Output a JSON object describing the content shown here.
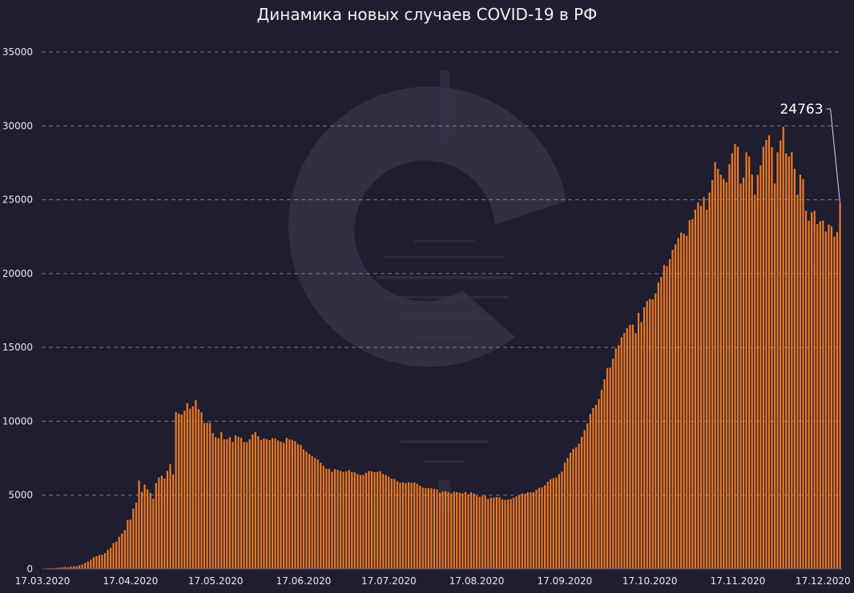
{
  "chart_data": {
    "type": "bar",
    "title": "Динамика новых случаев COVID-19 в РФ",
    "xlabel": "",
    "ylabel": "",
    "ylim": [
      0,
      35000
    ],
    "y_ticks": [
      0,
      5000,
      10000,
      15000,
      20000,
      25000,
      30000,
      35000
    ],
    "x_tick_labels": [
      "17.03.2020",
      "17.04.2020",
      "17.05.2020",
      "17.06.2020",
      "17.07.2020",
      "17.08.2020",
      "17.09.2020",
      "17.10.2020",
      "17.11.2020",
      "17.12.2020"
    ],
    "grid": true,
    "legend": "none",
    "start_date": "2020-03-17",
    "values": [
      22,
      31,
      49,
      61,
      69,
      75,
      109,
      119,
      138,
      127,
      163,
      175,
      192,
      248,
      302,
      407,
      508,
      626,
      795,
      870,
      957,
      959,
      1079,
      1305,
      1426,
      1748,
      1849,
      2181,
      2403,
      2635,
      3318,
      3346,
      4097,
      4483,
      5997,
      5212,
      5719,
      5390,
      5154,
      4762,
      5812,
      6198,
      6315,
      6117,
      6634,
      7096,
      6408,
      10633,
      10520,
      10469,
      10710,
      11215,
      10855,
      11014,
      11427,
      10819,
      10608,
      9890,
      9900,
      9900,
      9200,
      8926,
      8849,
      9267,
      8780,
      8787,
      8922,
      8602,
      9038,
      8958,
      8894,
      8595,
      8580,
      8778,
      9096,
      9270,
      8990,
      8728,
      8847,
      8794,
      8725,
      8866,
      8830,
      8704,
      8621,
      8543,
      8883,
      8770,
      8730,
      8663,
      8449,
      8404,
      8111,
      7938,
      7786,
      7651,
      7522,
      7412,
      7197,
      6968,
      6793,
      6785,
      6595,
      6764,
      6718,
      6632,
      6562,
      6615,
      6694,
      6556,
      6537,
      6428,
      6361,
      6368,
      6509,
      6632,
      6611,
      6556,
      6562,
      6615,
      6428,
      6361,
      6248,
      6121,
      6088,
      5942,
      5848,
      5871,
      5811,
      5879,
      5842,
      5862,
      5765,
      5635,
      5509,
      5475,
      5482,
      5462,
      5427,
      5383,
      5159,
      5241,
      5267,
      5204,
      5118,
      5226,
      5212,
      5159,
      5118,
      5205,
      5059,
      5189,
      5102,
      4952,
      4892,
      4945,
      4969,
      4748,
      4828,
      4829,
      4870,
      4852,
      4711,
      4676,
      4696,
      4729,
      4829,
      4921,
      4993,
      5110,
      5099,
      5185,
      5195,
      5205,
      5363,
      5488,
      5529,
      5670,
      5905,
      6065,
      6148,
      6196,
      6431,
      6595,
      7212,
      7523,
      7867,
      8135,
      8232,
      8481,
      8945,
      9412,
      9859,
      10499,
      10888,
      11115,
      11493,
      12126,
      12846,
      13592,
      13634,
      14231,
      14922,
      15150,
      15700,
      15982,
      16319,
      16521,
      16550,
      15971,
      17347,
      16710,
      17717,
      18140,
      18283,
      18257,
      18665,
      19404,
      19768,
      20582,
      20498,
      20977,
      21608,
      21983,
      22410,
      22778,
      22702,
      22572,
      23610,
      23675,
      24318,
      24822,
      24581,
      25173,
      24326,
      25487,
      26338,
      27543,
      27100,
      26683,
      26402,
      26190,
      27403,
      28145,
      28782,
      28585,
      26097,
      26509,
      28209,
      27927,
      26689,
      25345,
      26683,
      27328,
      28585,
      29039,
      29350,
      28552,
      26097,
      28209,
      29018,
      29935,
      28137,
      27927,
      28214,
      27100,
      25345,
      26690,
      26402,
      24246,
      23585,
      24150,
      24246,
      23351,
      23541,
      23586,
      22850,
      23315,
      23215,
      22500,
      22800,
      24763
    ],
    "callout": {
      "label": "24763",
      "value": 24763
    },
    "bar_color": "#f07a21",
    "background_color": "#1f1d30"
  }
}
